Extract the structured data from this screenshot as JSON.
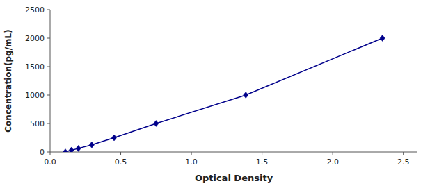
{
  "chart_data": {
    "type": "line",
    "xlabel": "Optical Density",
    "ylabel": "Concentration(pg/mL)",
    "x": [
      0.108,
      0.151,
      0.2,
      0.295,
      0.453,
      0.75,
      1.385,
      2.352
    ],
    "values": [
      0,
      31.25,
      62.5,
      125,
      250,
      500,
      1000,
      2000
    ],
    "color": "#00008B",
    "marker": "diamond",
    "line_style": "solid",
    "xlim": [
      0.0,
      2.6
    ],
    "ylim": [
      0,
      2500
    ],
    "xticks": [
      {
        "value": 0.0,
        "label": "0.0"
      },
      0.5,
      {
        "value": 1.0,
        "label": "1.0"
      },
      1.5,
      {
        "value": 2.0,
        "label": "2.0"
      },
      2.5
    ],
    "yticks": [
      0,
      500,
      1000,
      1500,
      2000,
      2500
    ],
    "grid": false
  }
}
